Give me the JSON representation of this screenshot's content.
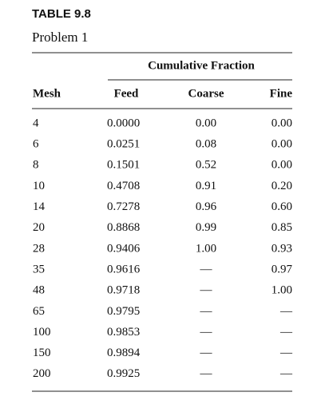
{
  "header": {
    "label": "TABLE 9.8",
    "title": "Problem 1"
  },
  "table": {
    "group_header": "Cumulative Fraction",
    "columns": [
      "Mesh",
      "Feed",
      "Coarse",
      "Fine"
    ],
    "rows": [
      [
        "4",
        "0.0000",
        "0.00",
        "0.00"
      ],
      [
        "6",
        "0.0251",
        "0.08",
        "0.00"
      ],
      [
        "8",
        "0.1501",
        "0.52",
        "0.00"
      ],
      [
        "10",
        "0.4708",
        "0.91",
        "0.20"
      ],
      [
        "14",
        "0.7278",
        "0.96",
        "0.60"
      ],
      [
        "20",
        "0.8868",
        "0.99",
        "0.85"
      ],
      [
        "28",
        "0.9406",
        "1.00",
        "0.93"
      ],
      [
        "35",
        "0.9616",
        "—",
        "0.97"
      ],
      [
        "48",
        "0.9718",
        "—",
        "1.00"
      ],
      [
        "65",
        "0.9795",
        "—",
        "—"
      ],
      [
        "100",
        "0.9853",
        "—",
        "—"
      ],
      [
        "150",
        "0.9894",
        "—",
        "—"
      ],
      [
        "200",
        "0.9925",
        "—",
        "—"
      ]
    ]
  }
}
